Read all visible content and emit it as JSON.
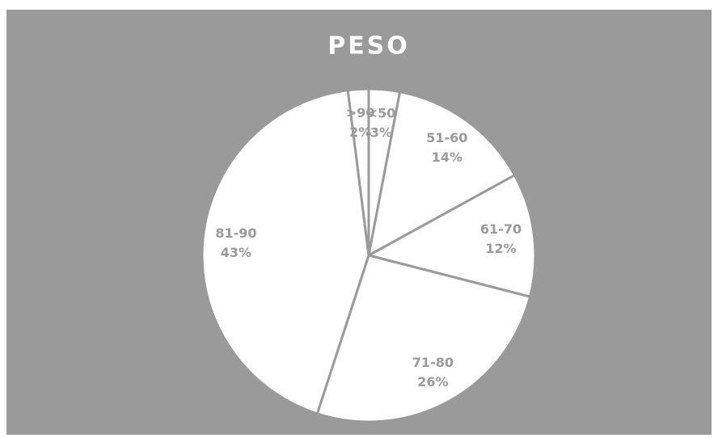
{
  "chart_data": {
    "type": "pie",
    "title": "PESO",
    "categories": [
      "<50",
      "51-60",
      "61-70",
      "71-80",
      "81-90",
      ">90"
    ],
    "values": [
      3,
      14,
      12,
      26,
      43,
      2
    ],
    "value_labels": [
      "3%",
      "14%",
      "12%",
      "26%",
      "43%",
      "2%"
    ],
    "color": "#ffffff",
    "edge_color": "#9a9a9a",
    "background": "#9a9a9a"
  }
}
